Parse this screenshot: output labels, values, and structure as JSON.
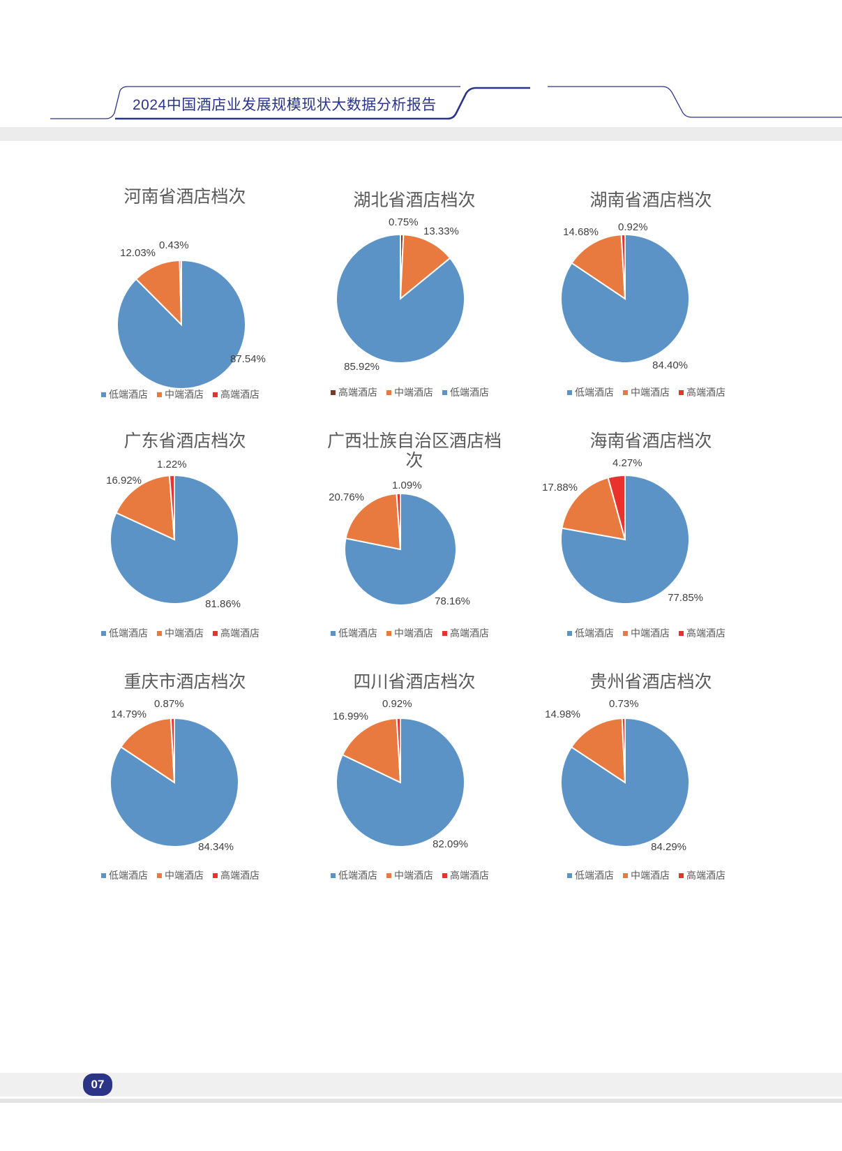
{
  "header": {
    "title": "2024中国酒店业发展规模现状大数据分析报告"
  },
  "footer": {
    "page_number": "07"
  },
  "colors": {
    "low": "#5b93c7",
    "mid": "#e8793f",
    "high": "#e8322e",
    "high_dark": "#7b3a22",
    "header_navy": "#2a3489"
  },
  "chart_data": [
    {
      "type": "pie",
      "title": "河南省酒店档次",
      "slices": [
        {
          "label": "低端酒店",
          "value": 87.54,
          "display": "87.54%"
        },
        {
          "label": "中端酒店",
          "value": 12.03,
          "display": "12.03%"
        },
        {
          "label": "高端酒店",
          "value": 0.43,
          "display": "0.43%"
        }
      ],
      "legend": [
        "低端酒店",
        "中端酒店",
        "高端酒店"
      ]
    },
    {
      "type": "pie",
      "title": "湖北省酒店档次",
      "slices": [
        {
          "label": "高端酒店",
          "value": 0.75,
          "display": "0.75%"
        },
        {
          "label": "中端酒店",
          "value": 13.33,
          "display": "13.33%"
        },
        {
          "label": "低端酒店",
          "value": 85.92,
          "display": "85.92%"
        }
      ],
      "legend": [
        "高端酒店",
        "中端酒店",
        "低端酒店"
      ]
    },
    {
      "type": "pie",
      "title": "湖南省酒店档次",
      "slices": [
        {
          "label": "低端酒店",
          "value": 84.4,
          "display": "84.40%"
        },
        {
          "label": "中端酒店",
          "value": 14.68,
          "display": "14.68%"
        },
        {
          "label": "高端酒店",
          "value": 0.92,
          "display": "0.92%"
        }
      ],
      "legend": [
        "低端酒店",
        "中端酒店",
        "高端酒店"
      ]
    },
    {
      "type": "pie",
      "title": "广东省酒店档次",
      "slices": [
        {
          "label": "低端酒店",
          "value": 81.86,
          "display": "81.86%"
        },
        {
          "label": "中端酒店",
          "value": 16.92,
          "display": "16.92%"
        },
        {
          "label": "高端酒店",
          "value": 1.22,
          "display": "1.22%"
        }
      ],
      "legend": [
        "低端酒店",
        "中端酒店",
        "高端酒店"
      ]
    },
    {
      "type": "pie",
      "title": [
        "广西壮族自治区酒店档",
        "次"
      ],
      "slices": [
        {
          "label": "低端酒店",
          "value": 78.16,
          "display": "78.16%"
        },
        {
          "label": "中端酒店",
          "value": 20.76,
          "display": "20.76%"
        },
        {
          "label": "高端酒店",
          "value": 1.09,
          "display": "1.09%"
        }
      ],
      "legend": [
        "低端酒店",
        "中端酒店",
        "高端酒店"
      ]
    },
    {
      "type": "pie",
      "title": "海南省酒店档次",
      "slices": [
        {
          "label": "低端酒店",
          "value": 77.85,
          "display": "77.85%"
        },
        {
          "label": "中端酒店",
          "value": 17.88,
          "display": "17.88%"
        },
        {
          "label": "高端酒店",
          "value": 4.27,
          "display": "4.27%"
        }
      ],
      "legend": [
        "低端酒店",
        "中端酒店",
        "高端酒店"
      ]
    },
    {
      "type": "pie",
      "title": "重庆市酒店档次",
      "slices": [
        {
          "label": "低端酒店",
          "value": 84.34,
          "display": "84.34%"
        },
        {
          "label": "中端酒店",
          "value": 14.79,
          "display": "14.79%"
        },
        {
          "label": "高端酒店",
          "value": 0.87,
          "display": "0.87%"
        }
      ],
      "legend": [
        "低端酒店",
        "中端酒店",
        "高端酒店"
      ]
    },
    {
      "type": "pie",
      "title": "四川省酒店档次",
      "slices": [
        {
          "label": "低端酒店",
          "value": 82.09,
          "display": "82.09%"
        },
        {
          "label": "中端酒店",
          "value": 16.99,
          "display": "16.99%"
        },
        {
          "label": "高端酒店",
          "value": 0.92,
          "display": "0.92%"
        }
      ],
      "legend": [
        "低端酒店",
        "中端酒店",
        "高端酒店"
      ]
    },
    {
      "type": "pie",
      "title": "贵州省酒店档次",
      "slices": [
        {
          "label": "低端酒店",
          "value": 84.29,
          "display": "84.29%"
        },
        {
          "label": "中端酒店",
          "value": 14.98,
          "display": "14.98%"
        },
        {
          "label": "高端酒店",
          "value": 0.73,
          "display": "0.73%"
        }
      ],
      "legend": [
        "低端酒店",
        "中端酒店",
        "高端酒店"
      ]
    }
  ]
}
